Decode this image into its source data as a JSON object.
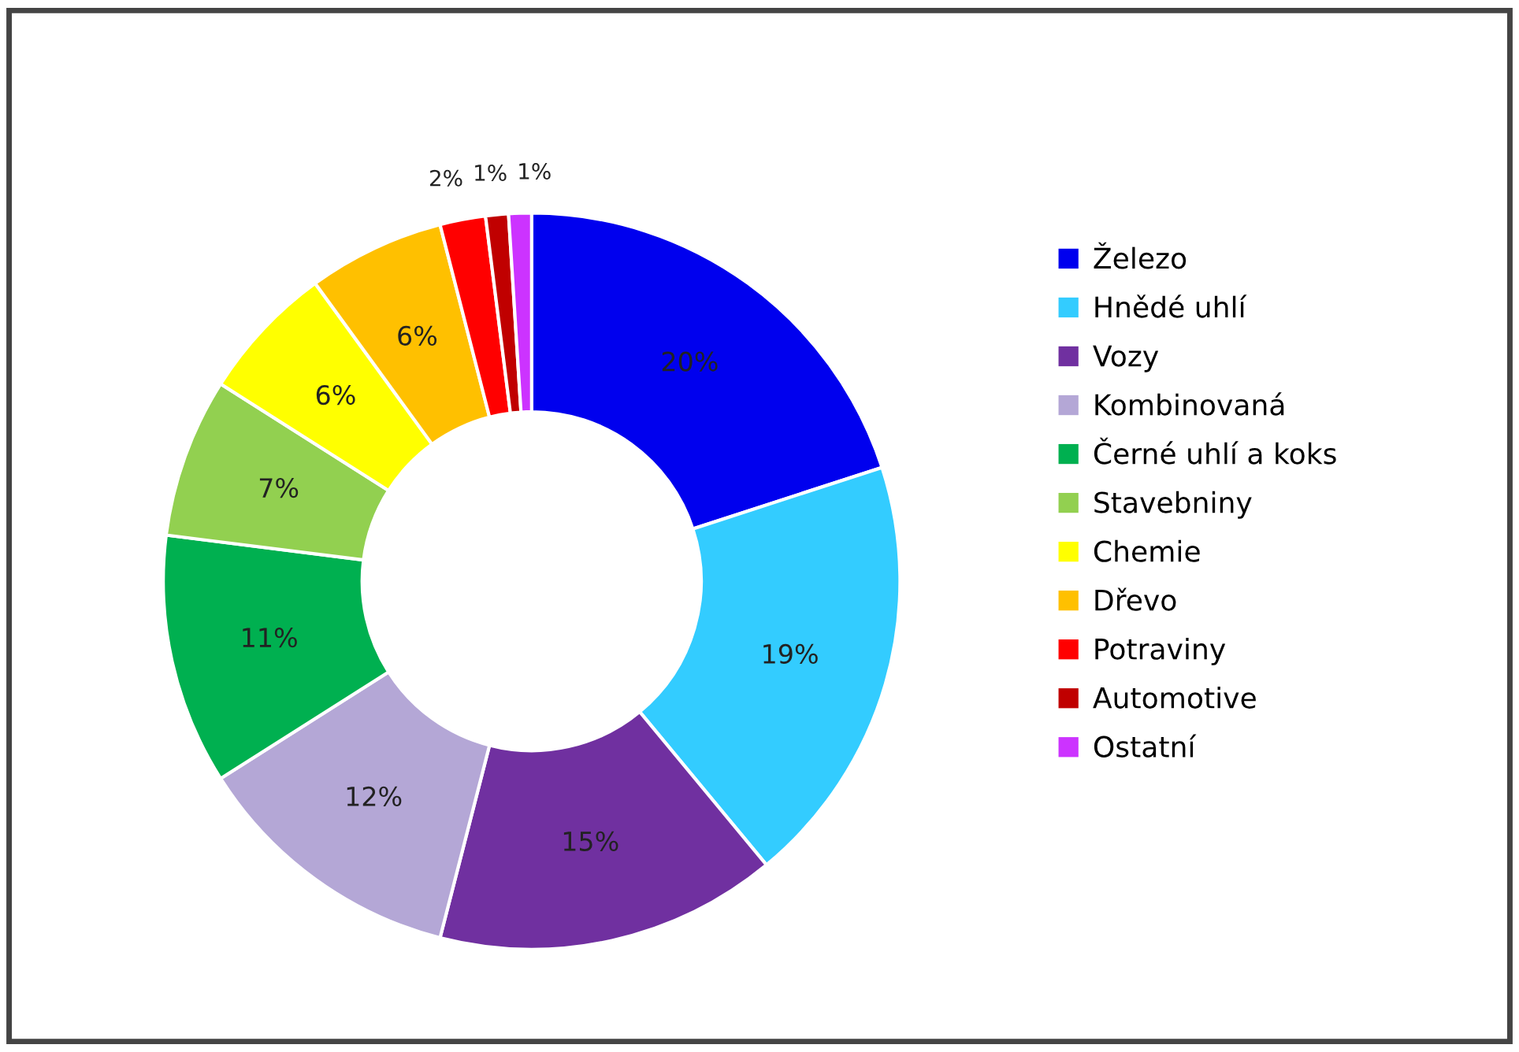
{
  "chart_data": {
    "type": "donut",
    "categories": [
      "Železo",
      "Hnědé uhlí",
      "Vozy",
      "Kombinovaná",
      "Černé uhlí a koks",
      "Stavebniny",
      "Chemie",
      "Dřevo",
      "Potraviny",
      "Automotive",
      "Ostatní"
    ],
    "values": [
      20,
      19,
      15,
      12,
      11,
      7,
      6,
      6,
      2,
      1,
      1
    ],
    "colors": [
      "#0000ee",
      "#33ccff",
      "#7030a0",
      "#b4a7d6",
      "#00b050",
      "#92d050",
      "#ffff00",
      "#ffc000",
      "#ff0000",
      "#c00000",
      "#cc33ff"
    ],
    "value_labels": [
      "20%",
      "19%",
      "15%",
      "12%",
      "11%",
      "7%",
      "6%",
      "6%",
      "2%",
      "1%",
      "1%"
    ],
    "legend": "right"
  }
}
